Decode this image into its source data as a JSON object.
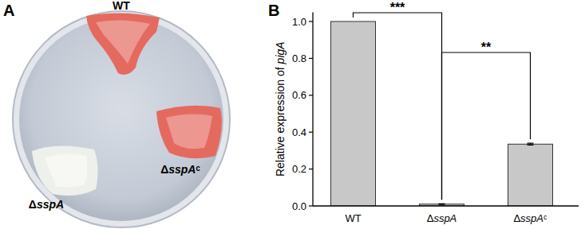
{
  "panel_labels": [
    "A",
    "B"
  ],
  "panel_a": {
    "type": "photo",
    "strain_labels": [
      "WT",
      "ΔsspA",
      "ΔsspAᶜ"
    ]
  },
  "chart_data": {
    "type": "bar",
    "categories": [
      "WT",
      "ΔsspA",
      "ΔsspAᶜ"
    ],
    "values": [
      1.0,
      0.01,
      0.335
    ],
    "errors": [
      0,
      0.002,
      0.005
    ],
    "color": "#c8c8c8",
    "y_label": "Relative expression of pigA",
    "ylim": [
      0,
      1.05
    ],
    "yticks": [
      {
        "value": 0,
        "label": "0.0"
      },
      {
        "value": 0.2,
        "label": "0.2"
      },
      {
        "value": 0.4,
        "label": "0.4"
      },
      {
        "value": 0.6,
        "label": "0.6"
      },
      {
        "value": 0.8,
        "label": "0.8"
      },
      {
        "value": 1.0,
        "label": "1.0"
      }
    ],
    "grid": false,
    "significance": [
      {
        "between": [
          "WT",
          "ΔsspA"
        ],
        "label": "***"
      },
      {
        "between": [
          "ΔsspA",
          "ΔsspAᶜ"
        ],
        "label": "**"
      }
    ]
  }
}
